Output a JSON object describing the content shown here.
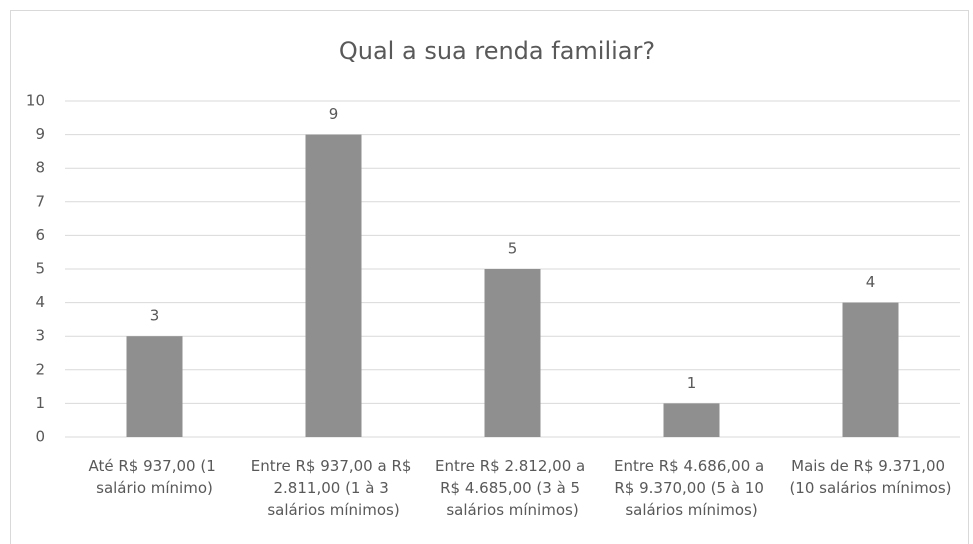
{
  "chart_data": {
    "type": "bar",
    "title": "Qual a sua renda familiar?",
    "categories": [
      "Até R$ 937,00 (1 salário mínimo)",
      "Entre R$ 937,00 a R$ 2.811,00 (1 à 3 salários mínimos)",
      "Entre R$ 2.812,00 a R$ 4.685,00 (3 à 5 salários mínimos)",
      "Entre R$ 4.686,00 a R$ 9.370,00 (5 à 10 salários mínimos)",
      "Mais de R$ 9.371,00 (10 salários mínimos)"
    ],
    "values": [
      3,
      9,
      5,
      1,
      4
    ],
    "color": "#8f8f8f",
    "ylim": [
      0,
      10
    ],
    "yticks": [
      0,
      1,
      2,
      3,
      4,
      5,
      6,
      7,
      8,
      9,
      10
    ],
    "grid": true,
    "data_labels": true
  }
}
